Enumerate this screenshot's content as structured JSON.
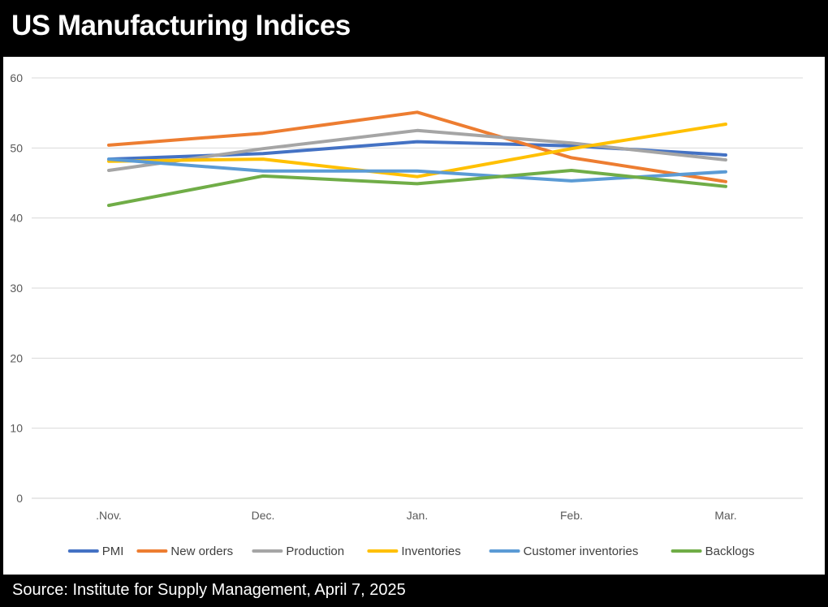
{
  "header": {
    "title": "US Manufacturing Indices"
  },
  "footer": {
    "source": "Source: Institute for Supply Management, April 7, 2025"
  },
  "chart_data": {
    "type": "line",
    "title": "US Manufacturing Indices",
    "categories": [
      ".Nov.",
      "Dec.",
      "Jan.",
      "Feb.",
      "Mar."
    ],
    "ylim": [
      0,
      60
    ],
    "yticks": [
      0,
      10,
      20,
      30,
      40,
      50,
      60
    ],
    "grid": true,
    "legend_position": "bottom",
    "series": [
      {
        "name": "PMI",
        "color": "#4472C4",
        "values": [
          48.4,
          49.2,
          50.9,
          50.3,
          49.0
        ]
      },
      {
        "name": "New orders",
        "color": "#ED7D31",
        "values": [
          50.4,
          52.1,
          55.1,
          48.6,
          45.2
        ]
      },
      {
        "name": "Production",
        "color": "#A5A5A5",
        "values": [
          46.8,
          49.9,
          52.5,
          50.7,
          48.3
        ]
      },
      {
        "name": "Inventories",
        "color": "#FFC000",
        "values": [
          48.1,
          48.4,
          45.9,
          49.9,
          53.4
        ]
      },
      {
        "name": "Customer inventories",
        "color": "#5B9BD5",
        "values": [
          48.4,
          46.7,
          46.7,
          45.3,
          46.6
        ]
      },
      {
        "name": "Backlogs",
        "color": "#70AD47",
        "values": [
          41.8,
          46.0,
          44.9,
          46.8,
          44.5
        ]
      }
    ]
  }
}
